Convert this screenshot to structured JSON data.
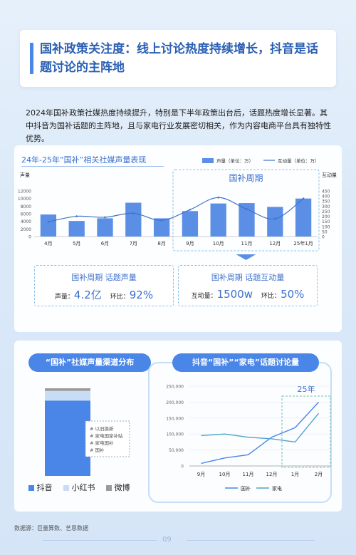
{
  "title": "国补政策关注度：线上讨论热度持续增长，抖音是话题讨论的主阵地",
  "intro": "2024年国补政策社媒热度持续提升，特别是下半年政策出台后，话题热度增长显著。其中抖音为国补话题的主阵地，且与家电行业发展密切相关，作为内容电商平台具有独特性优势。",
  "chart1": {
    "title": "24年-25年“国补”相关社媒声量表现",
    "legend_bar": "声量（单位：万）",
    "legend_line": "互动量（单位：万）",
    "left_axis_label": "声量",
    "right_axis_label": "互动量",
    "highlight_label": "国补周期"
  },
  "stats": {
    "left": {
      "head": "国补周期 话题声量",
      "lbl1": "声量：",
      "val1": "4.2亿",
      "lbl2": "环比：",
      "val2": "92%"
    },
    "right": {
      "head": "国补周期 话题互动量",
      "lbl1": "互动量：",
      "val1": "1500w",
      "lbl2": "环比：",
      "val2": "50%"
    }
  },
  "chart2": {
    "pill": "“国补”社媒声量渠道分布",
    "annotations": [
      "# 以旧换新",
      "# 家电国家补贴",
      "# 家电国补",
      "# 国补"
    ],
    "legend": [
      "抖音",
      "小红书",
      "微博"
    ],
    "shares": {
      "抖音": 0.86,
      "小红书": 0.11,
      "微博": 0.03
    }
  },
  "chart3": {
    "pill": "抖音“国补”“家电”话题讨论量",
    "highlight_label": "25年"
  },
  "chart_data": [
    {
      "type": "bar",
      "title": "24年-25年“国补”相关社媒声量表现",
      "categories": [
        "4月",
        "5月",
        "6月",
        "7月",
        "8月",
        "9月",
        "10月",
        "11月",
        "12月",
        "25年1月"
      ],
      "series": [
        {
          "name": "声量（单位：万）",
          "type": "bar",
          "axis": "left",
          "values": [
            5800,
            4100,
            4800,
            8900,
            4800,
            6700,
            8700,
            8800,
            7800,
            10000
          ]
        },
        {
          "name": "互动量（单位：万）",
          "type": "line",
          "axis": "right",
          "values": [
            145,
            200,
            190,
            230,
            160,
            265,
            385,
            270,
            175,
            375
          ]
        }
      ],
      "ylim_left": [
        0,
        12000
      ],
      "yticks_left": [
        0,
        2000,
        4000,
        6000,
        8000,
        10000,
        12000
      ],
      "ylim_right": [
        0,
        450
      ],
      "yticks_right": [
        0,
        50,
        100,
        150,
        200,
        250,
        300,
        350,
        400,
        450
      ]
    },
    {
      "type": "line",
      "title": "抖音“国补”“家电”话题讨论量",
      "categories": [
        "9月",
        "10月",
        "11月",
        "12月",
        "1月",
        "2月"
      ],
      "series": [
        {
          "name": "国补",
          "values": [
            8000,
            25000,
            35000,
            90000,
            120000,
            200000
          ]
        },
        {
          "name": "家电",
          "values": [
            95000,
            100000,
            90000,
            85000,
            75000,
            165000
          ]
        }
      ],
      "ylim": [
        0,
        250000
      ],
      "yticks": [
        0,
        50000,
        100000,
        150000,
        200000,
        250000
      ],
      "ytick_labels": [
        "0",
        "50,000",
        "100,000",
        "150,000",
        "200,000",
        "250,000"
      ]
    }
  ],
  "footer": {
    "source": "数据源：巨量算数、艺恩数据",
    "page": "09"
  },
  "colors": {
    "bar": "#5b8fe6",
    "line": "#3f73c9",
    "guobu": "#4a86e8",
    "jiadian": "#4fa3c8",
    "accent": "#3a6fd0"
  }
}
